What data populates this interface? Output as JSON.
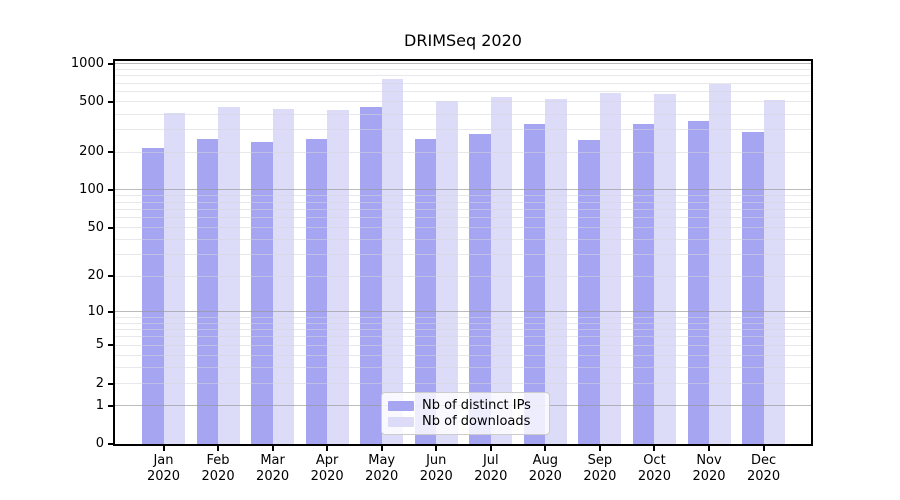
{
  "chart_data": {
    "type": "bar",
    "title": "DRIMSeq 2020",
    "categories": [
      "Jan",
      "Feb",
      "Mar",
      "Apr",
      "May",
      "Jun",
      "Jul",
      "Aug",
      "Sep",
      "Oct",
      "Nov",
      "Dec"
    ],
    "category_year_label": "2020",
    "series": [
      {
        "name": "Nb of distinct IPs",
        "color": "#a5a5f2",
        "values": [
          217,
          254,
          241,
          252,
          452,
          254,
          280,
          331,
          250,
          336,
          352,
          289
        ]
      },
      {
        "name": "Nb of downloads",
        "color": "#dcdcf8",
        "values": [
          405,
          457,
          441,
          433,
          760,
          507,
          545,
          529,
          586,
          579,
          694,
          517
        ]
      }
    ],
    "xlabel": "",
    "ylabel": "",
    "yscale": "log1p",
    "yticks": [
      0,
      1,
      2,
      5,
      10,
      20,
      50,
      100,
      200,
      500,
      1000
    ],
    "ylim": [
      0,
      1050
    ],
    "grid": "horizontal, minor light gray + major gray at powers of ten",
    "legend_position": "lower center",
    "colors": {
      "major_grid": "#bdbdbd",
      "minor_grid": "#ebebeb",
      "spine": "#000000",
      "background": "#ffffff"
    }
  }
}
